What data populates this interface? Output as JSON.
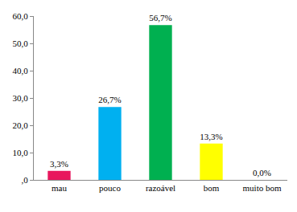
{
  "chart_data": {
    "type": "bar",
    "categories": [
      "mau",
      "pouco",
      "razoável",
      "bom",
      "muito bom"
    ],
    "values": [
      3.3,
      26.7,
      56.7,
      13.3,
      0.0
    ],
    "value_labels": [
      "3,3%",
      "26,7%",
      "56,7%",
      "13,3%",
      "0,0%"
    ],
    "colors": [
      "#e8175d",
      "#00b0f0",
      "#00b050",
      "#ffff00",
      "#7f7f7f"
    ],
    "ylim": [
      0,
      60
    ],
    "yticks": [
      {
        "value": 0,
        "label": ",0"
      },
      {
        "value": 10,
        "label": "10,0"
      },
      {
        "value": 20,
        "label": "20,0"
      },
      {
        "value": 30,
        "label": "30,0"
      },
      {
        "value": 40,
        "label": "40,0"
      },
      {
        "value": 50,
        "label": "50,0"
      },
      {
        "value": 60,
        "label": "60,0"
      }
    ],
    "grid": false,
    "data_labels": true
  }
}
